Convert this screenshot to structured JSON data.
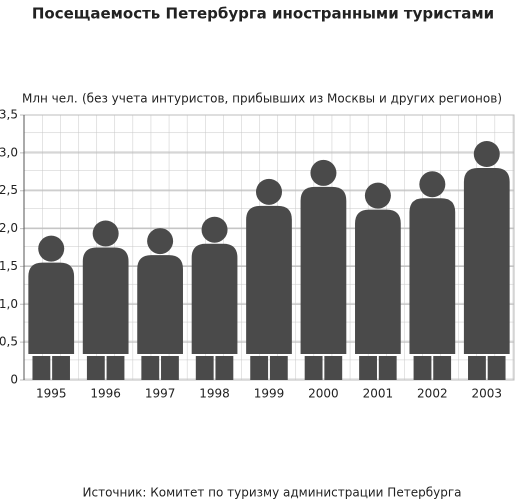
{
  "chart_data": {
    "type": "pictogram",
    "title": "Посещаемость Петербурга иностранными туристами",
    "y_label": "Млн чел.",
    "note": "(без учета интуристов, прибывших из Москвы и других регионов)",
    "source": "Источник: Комитет по туризму администрации Петербурга",
    "categories": [
      "1995",
      "1996",
      "1997",
      "1998",
      "1999",
      "2000",
      "2001",
      "2002",
      "2003"
    ],
    "values": [
      1.55,
      1.75,
      1.65,
      1.8,
      2.3,
      2.55,
      2.25,
      2.4,
      2.8
    ],
    "color": "#4a4a4a",
    "ylim": [
      0,
      3.5
    ],
    "yticks": [
      0,
      {
        "value": 0.5,
        "label": "0,5"
      },
      {
        "value": 1,
        "label": "1,0"
      },
      {
        "value": 1.5,
        "label": "1,5"
      },
      {
        "value": 2,
        "label": "2,0"
      },
      {
        "value": 2.5,
        "label": "2,5"
      },
      {
        "value": 3,
        "label": "3,0"
      },
      {
        "value": 3.5,
        "label": "3,5"
      }
    ],
    "grid": true
  }
}
